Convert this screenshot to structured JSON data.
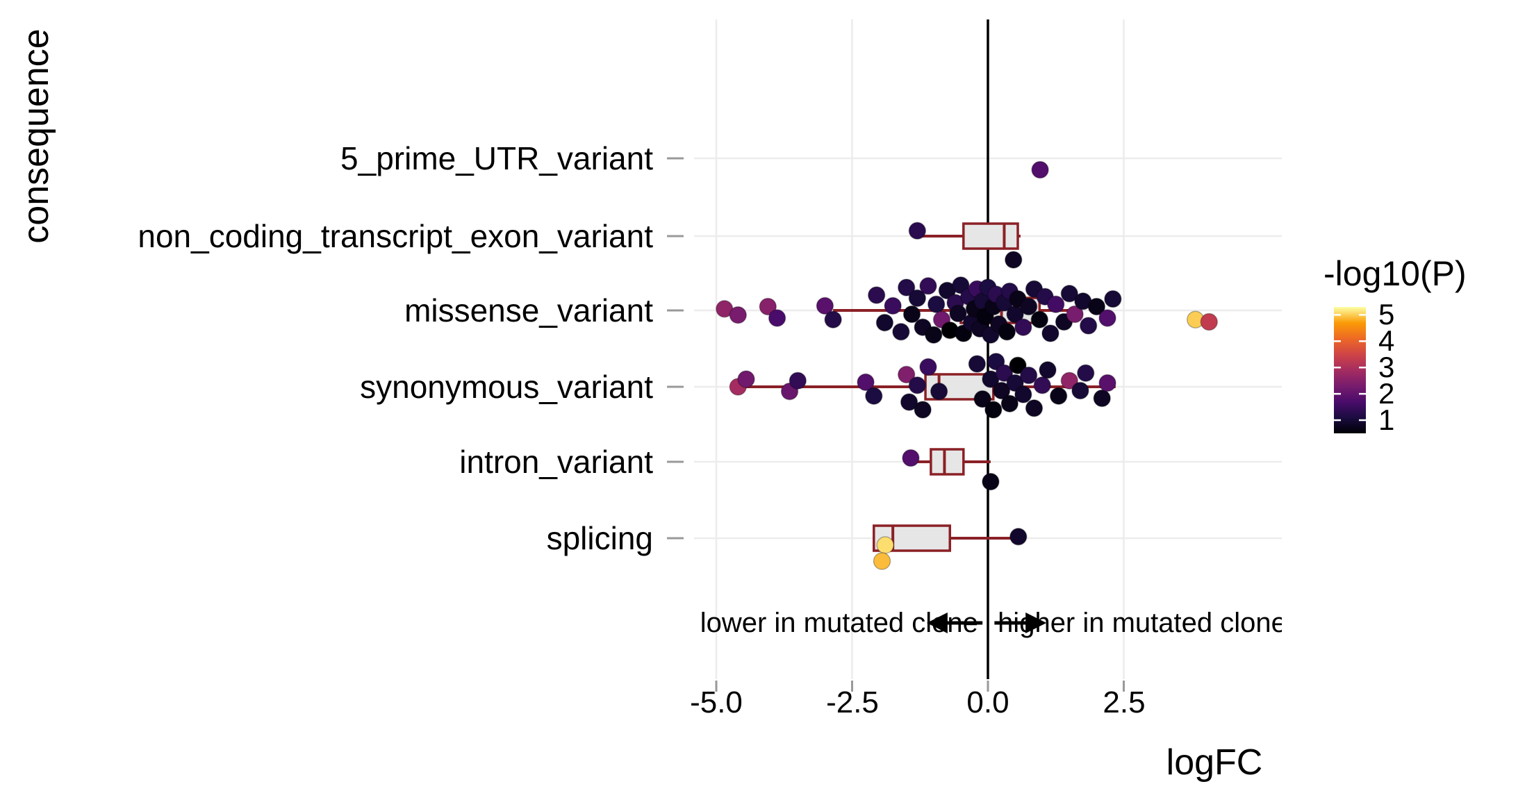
{
  "figure": {
    "background": "#ffffff"
  },
  "chart_data": {
    "type": "scatter",
    "subtype": "horizontal boxplots with jittered points colored by significance",
    "title": "",
    "xlabel": "logFC",
    "ylabel": "consequence",
    "xlim": [
      -5.4,
      5.4
    ],
    "x_tick_values": [
      -5.0,
      -2.5,
      0.0,
      2.5
    ],
    "x_tick_labels": [
      "-5.0",
      "-2.5",
      "0.0",
      "2.5"
    ],
    "categories": [
      "5_prime_UTR_variant",
      "non_coding_transcript_exon_variant",
      "missense_variant",
      "synonymous_variant",
      "intron_variant",
      "splicing"
    ],
    "zero_line_x": 0.0,
    "grid": true,
    "legend_position": "right",
    "annotations": {
      "left_text": "lower in mutated clone",
      "right_text": "higher in mutated clone"
    },
    "legend": {
      "title": "-log10(P)",
      "tick_labels": [
        "5",
        "4",
        "3",
        "2",
        "1"
      ],
      "tick_values": [
        5,
        4,
        3,
        2,
        1
      ],
      "domain": [
        0.5,
        5.3
      ],
      "colormap": "inferno"
    },
    "boxes": [
      null,
      {
        "whisker_low": -1.25,
        "q1": -0.45,
        "median": 0.3,
        "q3": 0.55,
        "whisker_high": 0.6
      },
      {
        "whisker_low": -2.85,
        "q1": -0.5,
        "median": 0.25,
        "q3": 0.95,
        "whisker_high": 1.55
      },
      {
        "whisker_low": -4.55,
        "q1": -1.15,
        "median": -0.9,
        "q3": 0.1,
        "whisker_high": 2.35
      },
      {
        "whisker_low": -1.3,
        "q1": -1.05,
        "median": -0.8,
        "q3": -0.45,
        "whisker_high": 0.05
      },
      {
        "whisker_low": -2.1,
        "q1": -2.1,
        "median": -1.75,
        "q3": -0.7,
        "whisker_high": 0.45
      }
    ],
    "points_format": "[category_index, logFC, jitter(row units -0.5..0.5), neg_log10_P]",
    "points": [
      [
        0,
        0.96,
        -0.15,
        1.8
      ],
      [
        1,
        -1.3,
        0.07,
        1.3
      ],
      [
        1,
        0.47,
        -0.31,
        0.8
      ],
      [
        2,
        -4.85,
        0.02,
        2.6
      ],
      [
        2,
        -4.6,
        -0.06,
        2.3
      ],
      [
        2,
        -4.05,
        0.05,
        2.5
      ],
      [
        2,
        -3.88,
        -0.1,
        1.7
      ],
      [
        2,
        -3.0,
        0.06,
        1.9
      ],
      [
        2,
        -2.85,
        -0.12,
        1.2
      ],
      [
        2,
        -2.05,
        0.2,
        1.3
      ],
      [
        2,
        -1.9,
        -0.16,
        0.9
      ],
      [
        2,
        -1.75,
        0.06,
        1.5
      ],
      [
        2,
        -1.6,
        -0.28,
        1.0
      ],
      [
        2,
        -1.5,
        0.3,
        1.2
      ],
      [
        2,
        -1.4,
        -0.05,
        0.7
      ],
      [
        2,
        -1.3,
        0.16,
        1.0
      ],
      [
        2,
        -1.2,
        -0.22,
        0.8
      ],
      [
        2,
        -1.1,
        0.32,
        1.4
      ],
      [
        2,
        -1.0,
        -0.32,
        0.7
      ],
      [
        2,
        -0.95,
        0.08,
        1.1
      ],
      [
        2,
        -0.85,
        -0.12,
        2.2
      ],
      [
        2,
        -0.75,
        0.26,
        0.9
      ],
      [
        2,
        -0.7,
        -0.26,
        0.5
      ],
      [
        2,
        -0.6,
        0.1,
        1.3
      ],
      [
        2,
        -0.55,
        -0.04,
        0.8
      ],
      [
        2,
        -0.5,
        0.33,
        1.0
      ],
      [
        2,
        -0.45,
        -0.3,
        0.6
      ],
      [
        2,
        -0.35,
        0.18,
        1.2
      ],
      [
        2,
        -0.3,
        -0.16,
        0.9
      ],
      [
        2,
        -0.25,
        0.02,
        0.7
      ],
      [
        2,
        -0.2,
        0.28,
        1.5
      ],
      [
        2,
        -0.15,
        -0.24,
        0.8
      ],
      [
        2,
        -0.1,
        0.12,
        1.0
      ],
      [
        2,
        -0.05,
        -0.08,
        0.6
      ],
      [
        2,
        0.0,
        0.3,
        1.1
      ],
      [
        2,
        0.05,
        -0.32,
        0.9
      ],
      [
        2,
        0.1,
        0.05,
        0.7
      ],
      [
        2,
        0.15,
        0.21,
        1.3
      ],
      [
        2,
        0.2,
        -0.18,
        0.8
      ],
      [
        2,
        0.3,
        0.1,
        1.0
      ],
      [
        2,
        0.35,
        -0.28,
        0.6
      ],
      [
        2,
        0.4,
        0.25,
        1.2
      ],
      [
        2,
        0.5,
        -0.05,
        0.9
      ],
      [
        2,
        0.55,
        0.15,
        0.7
      ],
      [
        2,
        0.65,
        -0.22,
        1.4
      ],
      [
        2,
        0.75,
        0.05,
        0.8
      ],
      [
        2,
        0.85,
        0.28,
        1.0
      ],
      [
        2,
        0.95,
        -0.12,
        0.6
      ],
      [
        2,
        1.05,
        0.18,
        1.2
      ],
      [
        2,
        1.15,
        -0.3,
        0.9
      ],
      [
        2,
        1.25,
        0.08,
        1.6
      ],
      [
        2,
        1.4,
        -0.15,
        0.8
      ],
      [
        2,
        1.5,
        0.22,
        1.0
      ],
      [
        2,
        1.6,
        -0.05,
        2.3
      ],
      [
        2,
        1.75,
        0.12,
        0.9
      ],
      [
        2,
        1.85,
        -0.2,
        1.2
      ],
      [
        2,
        2.0,
        0.05,
        0.7
      ],
      [
        2,
        2.2,
        -0.1,
        1.8
      ],
      [
        2,
        2.3,
        0.15,
        1.0
      ],
      [
        2,
        3.82,
        -0.12,
        5.0
      ],
      [
        2,
        4.07,
        -0.15,
        3.3
      ],
      [
        3,
        -4.6,
        0.0,
        2.9
      ],
      [
        3,
        -4.45,
        0.1,
        2.2
      ],
      [
        3,
        -3.65,
        -0.06,
        2.1
      ],
      [
        3,
        -3.5,
        0.08,
        1.4
      ],
      [
        3,
        -2.25,
        0.06,
        1.8
      ],
      [
        3,
        -2.1,
        -0.12,
        1.1
      ],
      [
        3,
        -1.5,
        0.16,
        2.4
      ],
      [
        3,
        -1.45,
        -0.2,
        0.9
      ],
      [
        3,
        -1.3,
        0.02,
        1.2
      ],
      [
        3,
        -1.2,
        -0.3,
        0.8
      ],
      [
        3,
        -1.1,
        0.26,
        1.5
      ],
      [
        3,
        -0.9,
        -0.06,
        1.0
      ],
      [
        3,
        -0.2,
        0.3,
        1.0
      ],
      [
        3,
        -0.1,
        -0.16,
        0.7
      ],
      [
        3,
        0.05,
        0.1,
        0.9
      ],
      [
        3,
        0.1,
        -0.3,
        0.6
      ],
      [
        3,
        0.15,
        0.33,
        1.1
      ],
      [
        3,
        0.25,
        -0.05,
        0.8
      ],
      [
        3,
        0.3,
        0.18,
        1.3
      ],
      [
        3,
        0.4,
        -0.22,
        0.7
      ],
      [
        3,
        0.5,
        0.05,
        1.0
      ],
      [
        3,
        0.55,
        0.28,
        0.5
      ],
      [
        3,
        0.65,
        -0.1,
        0.9
      ],
      [
        3,
        0.75,
        0.15,
        1.2
      ],
      [
        3,
        0.85,
        -0.28,
        0.8
      ],
      [
        3,
        1.0,
        0.02,
        1.4
      ],
      [
        3,
        1.1,
        0.22,
        0.9
      ],
      [
        3,
        1.3,
        -0.12,
        0.7
      ],
      [
        3,
        1.5,
        0.08,
        2.6
      ],
      [
        3,
        1.7,
        -0.05,
        1.0
      ],
      [
        3,
        1.8,
        0.18,
        1.2
      ],
      [
        3,
        2.1,
        -0.15,
        0.8
      ],
      [
        3,
        2.2,
        0.05,
        1.9
      ],
      [
        4,
        -1.42,
        0.05,
        1.8
      ],
      [
        4,
        0.05,
        -0.26,
        0.7
      ],
      [
        5,
        -1.89,
        -0.09,
        5.1
      ],
      [
        5,
        -1.95,
        -0.3,
        4.9
      ],
      [
        5,
        0.56,
        0.02,
        0.9
      ]
    ],
    "style": {
      "box_border": "#8b2026",
      "box_fill": "#e6e6e6",
      "grid_color": "#ececec",
      "zero_line_color": "#000000",
      "axis_tick_color": "#999999",
      "text_color": "#000000",
      "point_stroke": "rgba(0,0,0,0.28)",
      "point_radius_px": 12
    }
  }
}
